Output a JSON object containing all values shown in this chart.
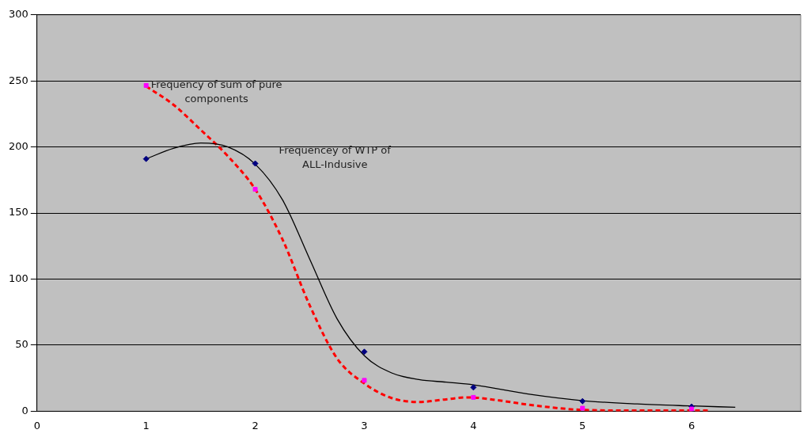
{
  "chart_data": {
    "type": "scatter",
    "xlim": [
      0,
      7
    ],
    "xticks": [
      0,
      1,
      2,
      3,
      4,
      5,
      6
    ],
    "ylim": [
      0,
      300
    ],
    "yticks": [
      0,
      50,
      100,
      150,
      200,
      250,
      300
    ],
    "grid": "y",
    "legend": false,
    "series": [
      {
        "type": "line",
        "color": "#000000",
        "line_style": "solid",
        "marker": "none",
        "x": [
          1,
          1.25,
          1.5,
          1.75,
          2,
          2.25,
          2.5,
          2.75,
          3,
          3.25,
          3.5,
          3.75,
          4,
          4.5,
          5,
          5.5,
          6,
          6.4
        ],
        "values": [
          191,
          199,
          203,
          200,
          187,
          160,
          115,
          70,
          42,
          29,
          24,
          22,
          20,
          13,
          8,
          5.5,
          4,
          3
        ]
      },
      {
        "type": "line",
        "color": "#ff0000",
        "line_style": "dashed",
        "marker": "none",
        "x": [
          1,
          1.25,
          1.5,
          1.75,
          2,
          2.25,
          2.5,
          2.75,
          3,
          3.25,
          3.5,
          3.75,
          3.95,
          4.25,
          4.5,
          5,
          5.5,
          6.15
        ],
        "values": [
          246,
          232,
          213,
          193,
          168,
          130,
          80,
          40,
          21,
          10,
          7,
          9,
          10.5,
          8,
          5,
          1,
          0.5,
          0.5
        ]
      },
      {
        "color": "#000080",
        "marker": "diamond",
        "x": [
          1,
          2,
          3,
          4,
          5,
          6
        ],
        "values": [
          191,
          187.5,
          45,
          18,
          7.6,
          3.5
        ]
      },
      {
        "color": "#ff00ff",
        "marker": "square",
        "x": [
          1,
          2,
          3,
          4,
          5,
          6
        ],
        "values": [
          246.6,
          168,
          23.4,
          10.5,
          2.3,
          1.7
        ]
      }
    ],
    "annotations": [
      "Frequency of sum of pure components",
      "Frequencey of WTP of ALL-Indusive"
    ]
  }
}
